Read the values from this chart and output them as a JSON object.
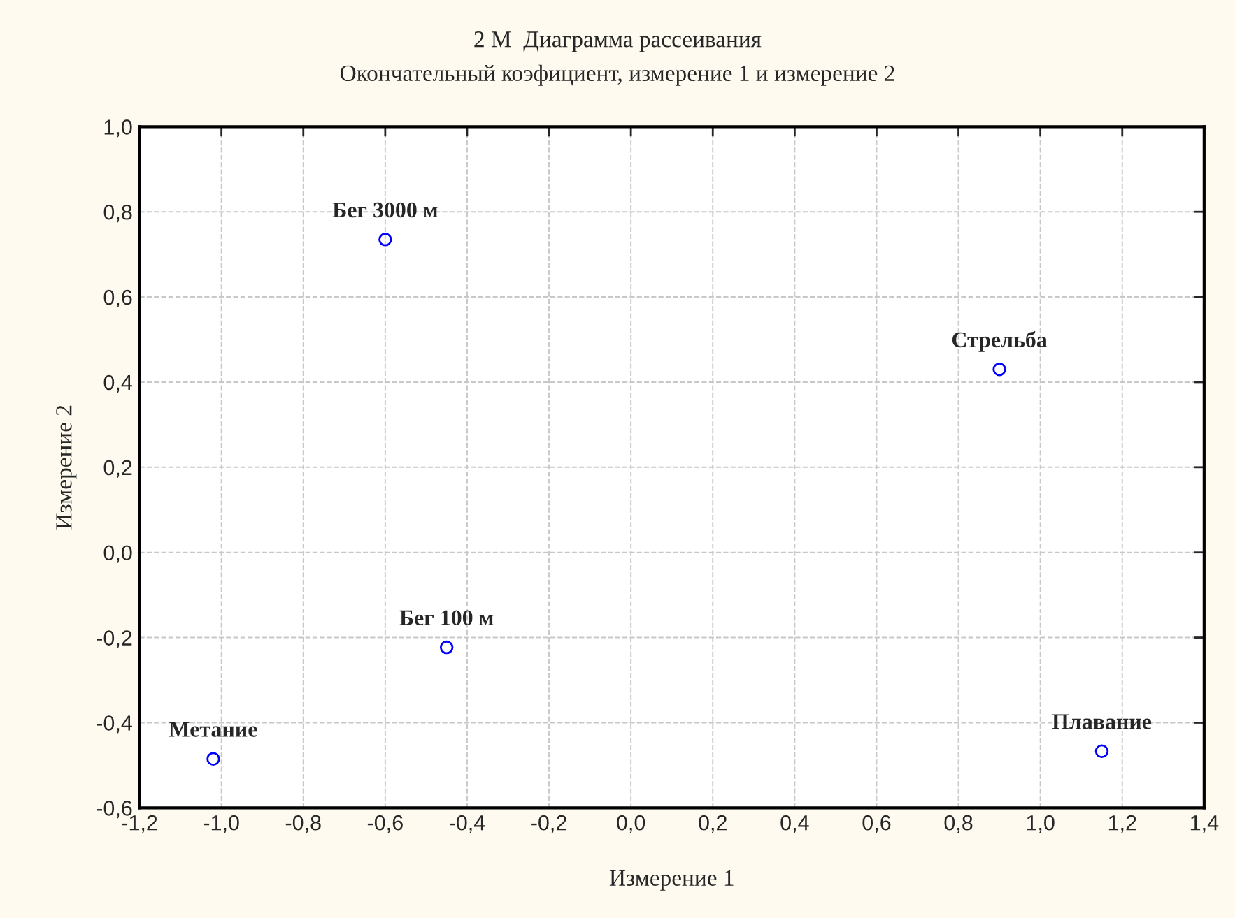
{
  "chart_data": {
    "type": "scatter",
    "title": "2 М  Диаграмма рассеивания",
    "subtitle": "Окончательный коэфициент, измерение 1 и измерение 2",
    "xlabel": "Измерение 1",
    "ylabel": "Измерение 2",
    "series": [
      {
        "color": "#0000ff",
        "x": [
          -0.6,
          -0.45,
          -1.02,
          0.9,
          1.15
        ],
        "values": [
          0.735,
          -0.223,
          -0.485,
          0.43,
          -0.467
        ]
      }
    ],
    "annotations": [
      {
        "text": "Бег 3000 м",
        "x": -0.6,
        "y": 0.735
      },
      {
        "text": "Бег 100 м",
        "x": -0.45,
        "y": -0.223
      },
      {
        "text": "Метание",
        "x": -1.02,
        "y": -0.485
      },
      {
        "text": "Стрельба",
        "x": 0.9,
        "y": 0.43
      },
      {
        "text": "Плавание",
        "x": 1.15,
        "y": -0.467
      }
    ],
    "xlim": [
      -1.2,
      1.4
    ],
    "xticks": [
      {
        "value": -1.2,
        "label": "-1,2"
      },
      {
        "value": -1.0,
        "label": "-1,0"
      },
      {
        "value": -0.8,
        "label": "-0,8"
      },
      {
        "value": -0.6,
        "label": "-0,6"
      },
      {
        "value": -0.4,
        "label": "-0,4"
      },
      {
        "value": -0.2,
        "label": "-0,2"
      },
      {
        "value": 0.0,
        "label": "0,0"
      },
      {
        "value": 0.2,
        "label": "0,2"
      },
      {
        "value": 0.4,
        "label": "0,4"
      },
      {
        "value": 0.6,
        "label": "0,6"
      },
      {
        "value": 0.8,
        "label": "0,8"
      },
      {
        "value": 1.0,
        "label": "1,0"
      },
      {
        "value": 1.2,
        "label": "1,2"
      },
      {
        "value": 1.4,
        "label": "1,4"
      }
    ],
    "ylim": [
      -0.6,
      1.0
    ],
    "yticks": [
      {
        "value": -0.6,
        "label": "-0,6"
      },
      {
        "value": -0.4,
        "label": "-0,4"
      },
      {
        "value": -0.2,
        "label": "-0,2"
      },
      {
        "value": 0.0,
        "label": "0,0"
      },
      {
        "value": 0.2,
        "label": "0,2"
      },
      {
        "value": 0.4,
        "label": "0,4"
      },
      {
        "value": 0.6,
        "label": "0,6"
      },
      {
        "value": 0.8,
        "label": "0,8"
      },
      {
        "value": 1.0,
        "label": "1,0"
      }
    ],
    "grid": true,
    "marker": "circle"
  }
}
